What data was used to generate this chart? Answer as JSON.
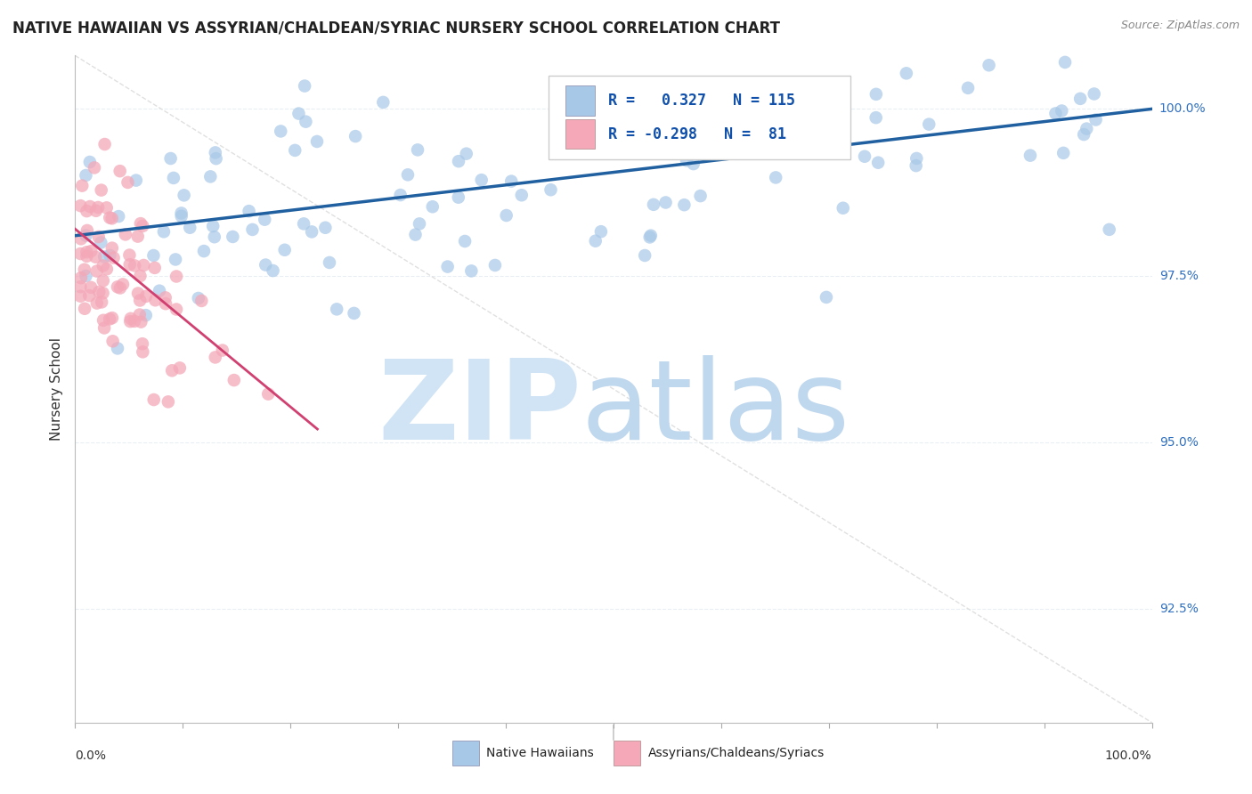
{
  "title": "NATIVE HAWAIIAN VS ASSYRIAN/CHALDEAN/SYRIAC NURSERY SCHOOL CORRELATION CHART",
  "source": "Source: ZipAtlas.com",
  "ylabel": "Nursery School",
  "ytick_labels": [
    "100.0%",
    "97.5%",
    "95.0%",
    "92.5%"
  ],
  "ytick_values": [
    1.0,
    0.975,
    0.95,
    0.925
  ],
  "xlim": [
    0.0,
    1.0
  ],
  "ylim": [
    0.908,
    1.008
  ],
  "blue_color": "#A8C8E8",
  "pink_color": "#F4A8B8",
  "blue_line_color": "#2060A0",
  "pink_line_color": "#D04070",
  "diagonal_color": "#DDDDDD",
  "grid_color": "#E8EEF4",
  "blue_trend_x": [
    0.0,
    1.0
  ],
  "blue_trend_y": [
    0.981,
    1.0
  ],
  "pink_trend_x": [
    0.0,
    0.225
  ],
  "pink_trend_y": [
    0.982,
    0.952
  ]
}
